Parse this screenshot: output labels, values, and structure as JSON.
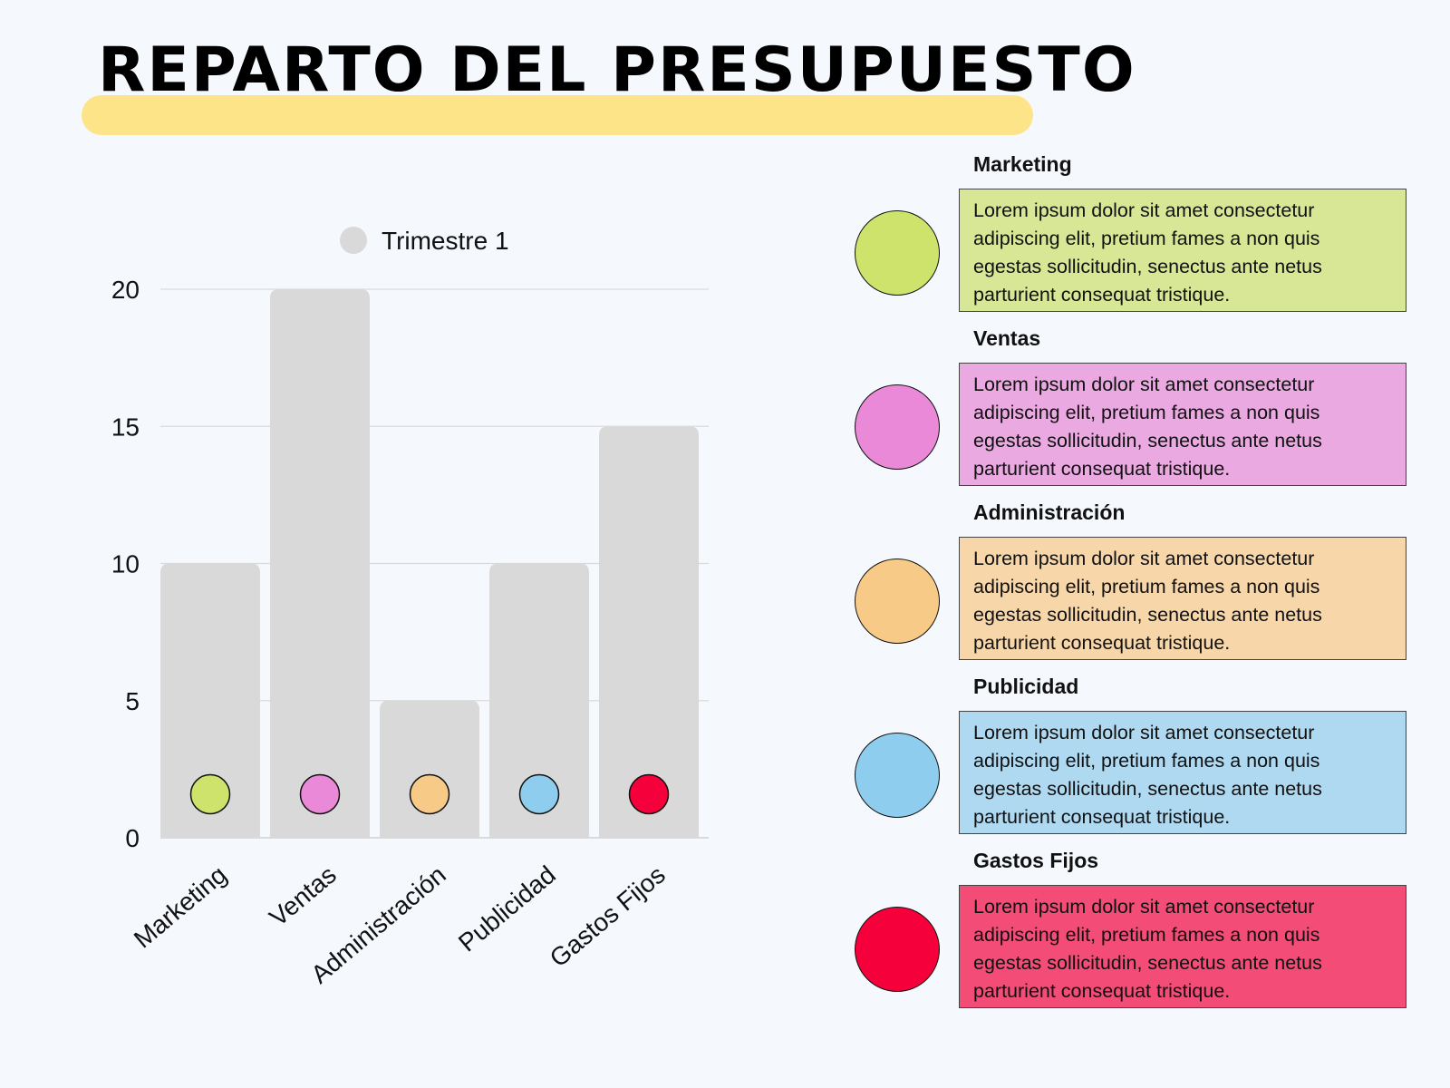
{
  "title": "REPARTO DEL PRESUPUESTO",
  "chart_data": {
    "type": "bar",
    "categories": [
      "Marketing",
      "Ventas",
      "Administración",
      "Publicidad",
      "Gastos Fijos"
    ],
    "series": [
      {
        "name": "Trimestre 1",
        "values": [
          10,
          20,
          5,
          10,
          15
        ]
      }
    ],
    "ylim": [
      0,
      20
    ],
    "yticks": [
      0,
      5,
      10,
      15,
      20
    ],
    "grid": true,
    "legend": "top-center",
    "bar_color": "#d9d9d9",
    "legend_color": "#d9d9d9",
    "marker_colors": [
      "#cde36c",
      "#e989d8",
      "#f7cb87",
      "#8ecdee",
      "#f5003a"
    ]
  },
  "cards": [
    {
      "name": "Marketing",
      "text": "Lorem ipsum dolor sit amet consectetur adipiscing elit, pretium fames a non quis egestas sollicitudin, senectus ante netus parturient consequat tristique.",
      "dot_color": "#cde36c",
      "box_color": "#d7e795"
    },
    {
      "name": "Ventas",
      "text": "Lorem ipsum dolor sit amet consectetur adipiscing elit, pretium fames a non quis egestas sollicitudin, senectus ante netus parturient consequat tristique.",
      "dot_color": "#e989d8",
      "box_color": "#eaa9e1"
    },
    {
      "name": "Administración",
      "text": "Lorem ipsum dolor sit amet consectetur adipiscing elit, pretium fames a non quis egestas sollicitudin, senectus ante netus parturient consequat tristique.",
      "dot_color": "#f7cb87",
      "box_color": "#f7d7a9"
    },
    {
      "name": "Publicidad",
      "text": "Lorem ipsum dolor sit amet consectetur adipiscing elit, pretium fames a non quis egestas sollicitudin, senectus ante netus parturient consequat tristique.",
      "dot_color": "#8ecdee",
      "box_color": "#aed9f1"
    },
    {
      "name": "Gastos Fijos",
      "text": "Lorem ipsum dolor sit amet consectetur adipiscing elit, pretium fames a non quis egestas sollicitudin, senectus ante netus parturient consequat tristique.",
      "dot_color": "#f5003a",
      "box_color": "#f24c77"
    }
  ]
}
